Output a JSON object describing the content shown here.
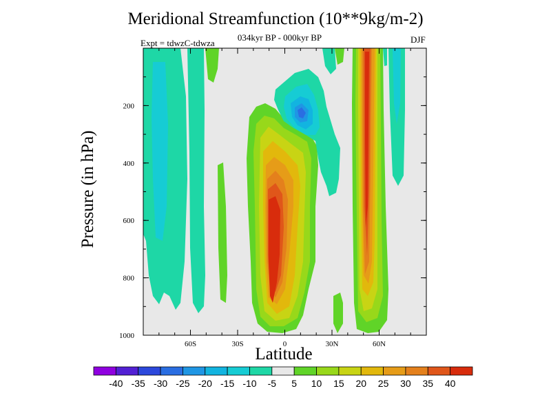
{
  "chart_data": {
    "type": "heatmap",
    "title": "Meridional Streamfunction (10**9kg/m-2)",
    "subtitle_left": "Expt = tdwzC-tdwza",
    "subtitle_center": "034kyr BP - 000kyr BP",
    "subtitle_right": "DJF",
    "xlabel": "Latitude",
    "ylabel": "Pressure (in hPa)",
    "x_range": [
      -90,
      90
    ],
    "y_range": [
      0,
      1000
    ],
    "y_reversed": true,
    "x_ticks": [
      {
        "value": -60,
        "label": "60S"
      },
      {
        "value": -30,
        "label": "30S"
      },
      {
        "value": 0,
        "label": "0"
      },
      {
        "value": 30,
        "label": "30N"
      },
      {
        "value": 60,
        "label": "60N"
      }
    ],
    "y_ticks": [
      {
        "value": 200,
        "label": "200"
      },
      {
        "value": 400,
        "label": "400"
      },
      {
        "value": 600,
        "label": "600"
      },
      {
        "value": 800,
        "label": "800"
      },
      {
        "value": 1000,
        "label": "1000"
      }
    ],
    "colorbar": {
      "labels": [
        "-40",
        "-35",
        "-30",
        "-25",
        "-20",
        "-15",
        "-10",
        "-5",
        "5",
        "10",
        "15",
        "20",
        "25",
        "30",
        "35",
        "40"
      ],
      "colors": [
        "#8f00e0",
        "#5220d4",
        "#2c48dc",
        "#2a6ee2",
        "#1f96e4",
        "#12b4e0",
        "#16ccd4",
        "#1ed7a6",
        "#e8e8e8",
        "#60d428",
        "#98d81a",
        "#c8d414",
        "#e2b80c",
        "#e69c18",
        "#e4801c",
        "#e0561a",
        "#d82c0c"
      ]
    },
    "background_color": "#e8e8e8",
    "features": [
      {
        "name": "Tropical positive cell",
        "center_lat": -5,
        "pressure_range": [
          150,
          990
        ],
        "peak_value": 40
      },
      {
        "name": "Northern mid-latitude positive cell",
        "center_lat": 52,
        "pressure_range": [
          0,
          980
        ],
        "peak_value": 40
      },
      {
        "name": "Upper-tropospheric negative cell",
        "center_lat": 8,
        "pressure_range": [
          80,
          330
        ],
        "peak_value": -25
      },
      {
        "name": "Southern high-latitude negative band",
        "center_lat": -80,
        "pressure_range": [
          0,
          930
        ],
        "peak_value": -10
      },
      {
        "name": "Northern high-latitude negative band",
        "center_lat": 68,
        "pressure_range": [
          0,
          310
        ],
        "peak_value": -10
      }
    ]
  }
}
